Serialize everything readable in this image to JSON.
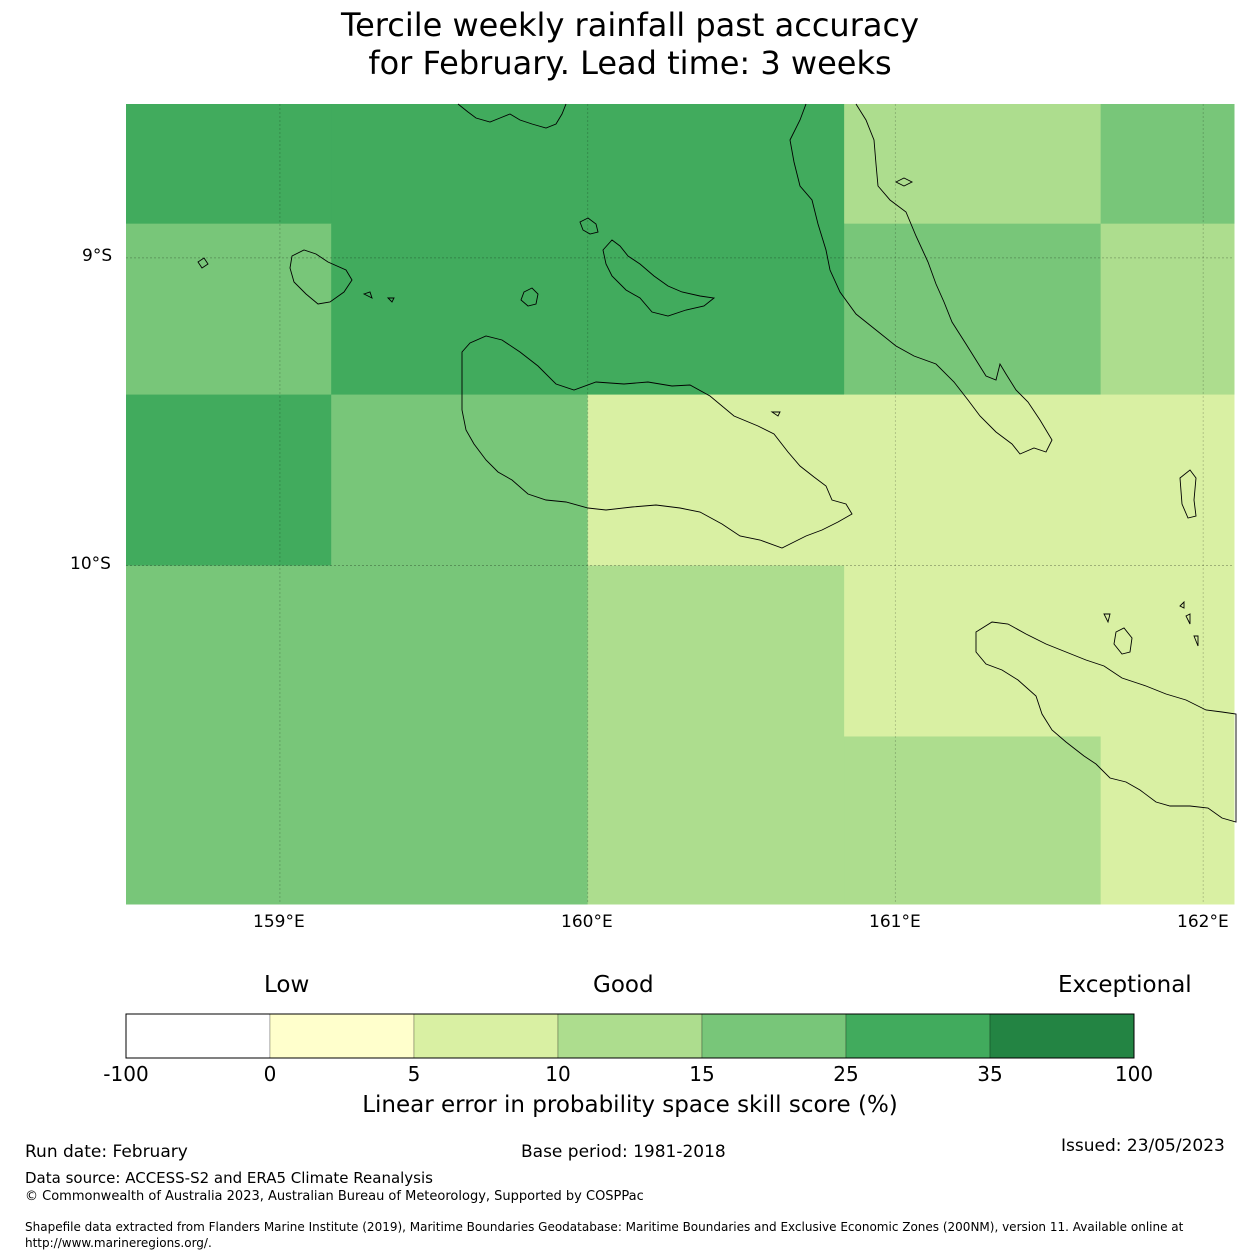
{
  "title": {
    "line1": "Tercile weekly rainfall past accuracy",
    "line2": "for February. Lead time: 3 weeks"
  },
  "map": {
    "lon_range": [
      158.5,
      162.1
    ],
    "lat_range": [
      -11.1,
      -8.5
    ],
    "lat_labels": [
      {
        "value": -9,
        "label": "9°S"
      },
      {
        "value": -10,
        "label": "10°S"
      }
    ],
    "lon_labels": [
      {
        "value": 159,
        "label": "159°E"
      },
      {
        "value": 160,
        "label": "160°E"
      },
      {
        "value": 161,
        "label": "161°E"
      },
      {
        "value": 162,
        "label": "162°E"
      }
    ],
    "grid_lon_edges": [
      158.5,
      159.1667,
      160.0,
      160.8333,
      161.6667,
      162.1
    ],
    "grid_lat_edges": [
      -8.5,
      -8.8889,
      -9.4444,
      -10.0,
      -10.5556,
      -11.1
    ],
    "grid_values_note": "LEPS skill score category per cell (row-major, north to south)",
    "grid_categories": [
      [
        25,
        25,
        25,
        10,
        15
      ],
      [
        15,
        25,
        25,
        15,
        10
      ],
      [
        25,
        15,
        5,
        5,
        5
      ],
      [
        15,
        15,
        10,
        5,
        5
      ],
      [
        15,
        15,
        10,
        10,
        5
      ]
    ]
  },
  "colorbar": {
    "words": {
      "low": "Low",
      "good": "Good",
      "exceptional": "Exceptional"
    },
    "ticks": [
      "-100",
      "0",
      "5",
      "10",
      "15",
      "25",
      "35",
      "100"
    ],
    "colors": [
      "#ffffff",
      "#ffffcc",
      "#d9f0a3",
      "#addd8e",
      "#78c679",
      "#41ab5d",
      "#238443"
    ],
    "title": "Linear error in probability space skill score (%)"
  },
  "footer": {
    "run_date": "Run date: February",
    "base_period": "Base period: 1981-2018",
    "issued": "Issued: 23/05/2023",
    "data_source": "Data source: ACCESS-S2 and ERA5 Climate Reanalysis",
    "copyright": "© Commonwealth of Australia 2023, Australian Bureau of Meteorology, Supported by COSPPac",
    "shapefile_line1": "Shapefile data extracted from Flanders Marine Institute (2019), Maritime Boundaries Geodatabase: Maritime Boundaries and Exclusive Economic Zones (200NM), version 11. Available online at",
    "shapefile_line2": "http://www.marineregions.org/."
  }
}
